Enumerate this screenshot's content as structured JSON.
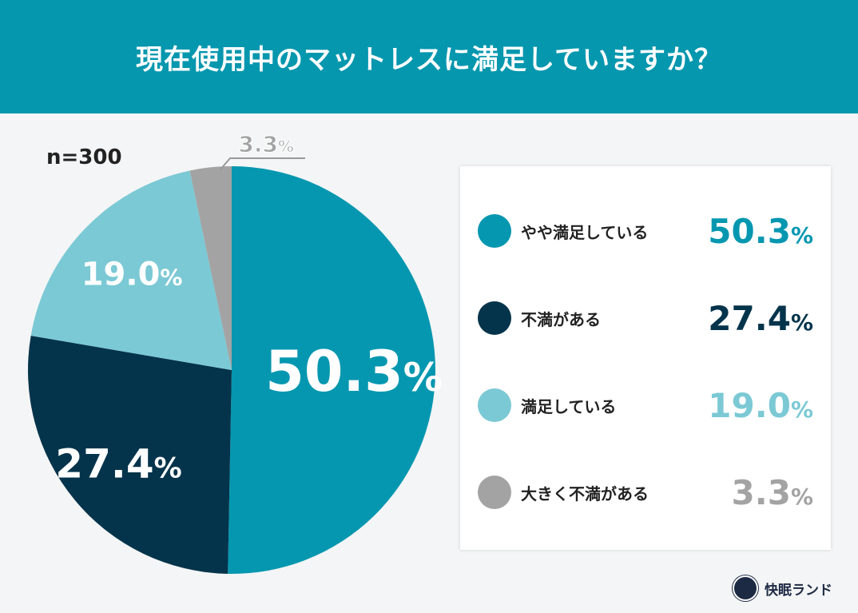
{
  "title": "現在使用中のマットレスに満足していますか？",
  "sample": "n=300",
  "brand": "快眠ランド",
  "chart_data": {
    "type": "pie",
    "title": "現在使用中のマットレスに満足していますか？",
    "start": "top, clockwise",
    "slices": [
      {
        "label": "やや満足している",
        "value": 50.3,
        "display": "50.3",
        "color": "#0597b0"
      },
      {
        "label": "不満がある",
        "value": 27.4,
        "display": "27.4",
        "color": "#04344b"
      },
      {
        "label": "満足している",
        "value": 19.0,
        "display": "19.0",
        "color": "#7bc9d5"
      },
      {
        "label": "大きく不満がある",
        "value": 3.3,
        "display": "3.3",
        "color": "#a3a3a3"
      }
    ],
    "unit": "%",
    "legend": "right"
  }
}
